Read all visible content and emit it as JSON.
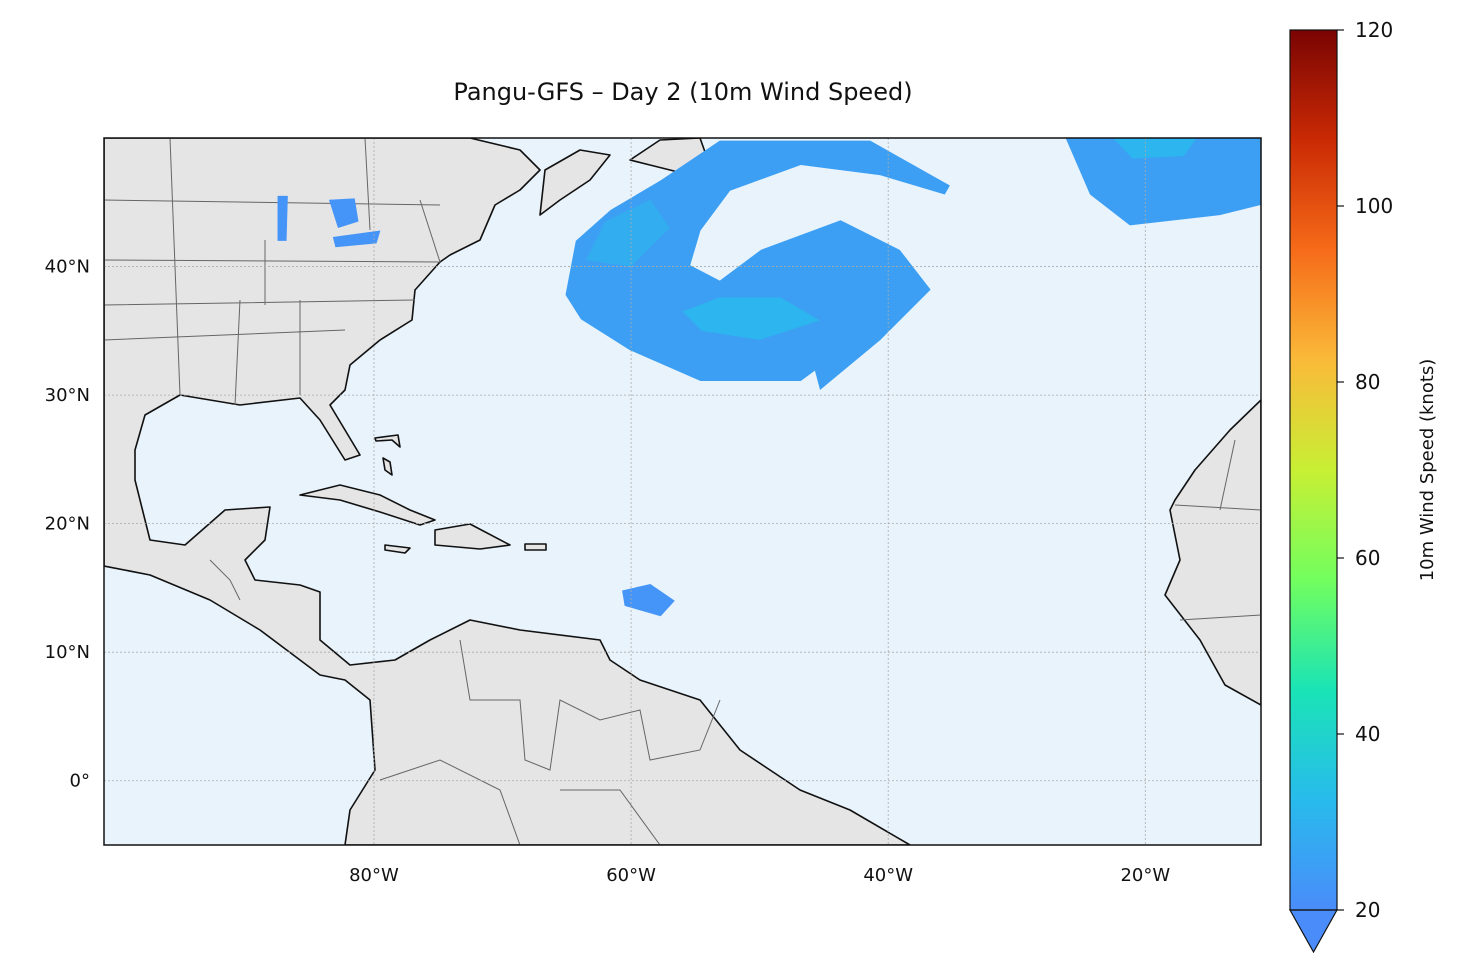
{
  "chart_data": {
    "type": "map",
    "title": "Pangu-GFS – Day 2 (10m Wind Speed)",
    "xlim": [
      -101,
      -11
    ],
    "ylim": [
      -5,
      50
    ],
    "xticks": [
      {
        "value": -80,
        "label": "80°W"
      },
      {
        "value": -60,
        "label": "60°W"
      },
      {
        "value": -40,
        "label": "40°W"
      },
      {
        "value": -20,
        "label": "20°W"
      }
    ],
    "yticks": [
      {
        "value": 0,
        "label": "0°"
      },
      {
        "value": 10,
        "label": "10°N"
      },
      {
        "value": 20,
        "label": "20°N"
      },
      {
        "value": 30,
        "label": "30°N"
      },
      {
        "value": 40,
        "label": "40°N"
      }
    ],
    "grid": true,
    "colorbar": {
      "label": "10m Wind Speed (knots)",
      "clim": [
        20,
        120
      ],
      "ticks": [
        20,
        40,
        60,
        80,
        100,
        120
      ],
      "extend": "min",
      "colors": [
        "#4a8cfa",
        "#28bbec",
        "#1ae4b6",
        "#72fe5e",
        "#c8ef34",
        "#faba39",
        "#f66b19",
        "#ca2a04",
        "#7a0403"
      ]
    },
    "wind_regions": [
      {
        "value": 25,
        "polygon": [
          [
            -65.1,
            37.8
          ],
          [
            -64.3,
            42.0
          ],
          [
            -61.6,
            44.4
          ],
          [
            -57.7,
            46.7
          ],
          [
            -53.1,
            49.8
          ],
          [
            -41.4,
            49.8
          ],
          [
            -35.2,
            46.3
          ],
          [
            -35.6,
            45.6
          ],
          [
            -40.6,
            47.1
          ],
          [
            -46.8,
            47.9
          ],
          [
            -52.3,
            45.9
          ],
          [
            -54.6,
            42.8
          ],
          [
            -55.4,
            40.1
          ],
          [
            -53.1,
            38.9
          ],
          [
            -49.9,
            41.3
          ],
          [
            -43.7,
            43.6
          ],
          [
            -39.1,
            41.3
          ],
          [
            -36.7,
            38.2
          ],
          [
            -40.6,
            34.3
          ],
          [
            -45.3,
            30.4
          ],
          [
            -45.7,
            31.9
          ],
          [
            -46.8,
            31.1
          ],
          [
            -54.6,
            31.1
          ],
          [
            -60.1,
            33.5
          ],
          [
            -63.9,
            35.9
          ]
        ]
      },
      {
        "value": 31,
        "polygon": [
          [
            -56.0,
            36.5
          ],
          [
            -53.1,
            37.6
          ],
          [
            -48.4,
            37.6
          ],
          [
            -45.3,
            35.8
          ],
          [
            -50.0,
            34.3
          ],
          [
            -54.5,
            35.0
          ]
        ]
      },
      {
        "value": 29,
        "polygon": [
          [
            -63.5,
            40.5
          ],
          [
            -62.0,
            43.5
          ],
          [
            -58.5,
            45.2
          ],
          [
            -57.0,
            43.0
          ],
          [
            -60.0,
            40.0
          ]
        ]
      },
      {
        "value": 25,
        "polygon": [
          [
            -26.2,
            50.0
          ],
          [
            -11.0,
            50.0
          ],
          [
            -11.0,
            44.8
          ],
          [
            -14.2,
            44.0
          ],
          [
            -21.2,
            43.2
          ],
          [
            -24.3,
            45.6
          ]
        ]
      },
      {
        "value": 31,
        "polygon": [
          [
            -22.5,
            50.0
          ],
          [
            -16.0,
            50.0
          ],
          [
            -17.0,
            48.6
          ],
          [
            -21.0,
            48.4
          ]
        ]
      },
      {
        "value": 22,
        "polygon": [
          [
            -60.7,
            14.8
          ],
          [
            -58.5,
            15.3
          ],
          [
            -56.6,
            14.0
          ],
          [
            -57.7,
            12.8
          ],
          [
            -60.5,
            13.6
          ]
        ]
      },
      {
        "value": 22,
        "polygon": [
          [
            -87.5,
            45.5
          ],
          [
            -86.7,
            45.5
          ],
          [
            -86.8,
            42.0
          ],
          [
            -87.5,
            42.0
          ]
        ]
      },
      {
        "value": 22,
        "polygon": [
          [
            -83.5,
            45.2
          ],
          [
            -81.5,
            45.3
          ],
          [
            -81.2,
            43.5
          ],
          [
            -82.8,
            43.0
          ]
        ]
      },
      {
        "value": 22,
        "polygon": [
          [
            -83.2,
            42.3
          ],
          [
            -79.5,
            42.8
          ],
          [
            -79.8,
            41.8
          ],
          [
            -83.0,
            41.5
          ]
        ]
      }
    ]
  }
}
